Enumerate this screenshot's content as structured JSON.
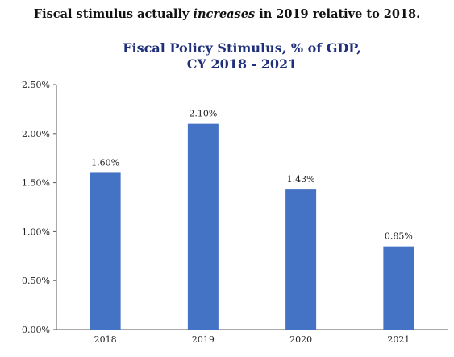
{
  "headline": {
    "before": "Fiscal stimulus actually ",
    "emphasis": "increases",
    "after": " in 2019 relative to 2018."
  },
  "chart_data": {
    "type": "bar",
    "title_line1": "Fiscal Policy Stimulus, % of GDP,",
    "title_line2": "CY 2018 - 2021",
    "categories": [
      "2018",
      "2019",
      "2020",
      "2021"
    ],
    "values": [
      1.6,
      2.1,
      1.43,
      0.85
    ],
    "value_labels": [
      "1.60%",
      "2.10%",
      "1.43%",
      "0.85%"
    ],
    "ylim": [
      0,
      2.5
    ],
    "yticks": [
      0,
      0.5,
      1.0,
      1.5,
      2.0,
      2.5
    ],
    "ytick_labels": [
      "0.00%",
      "0.50%",
      "1.00%",
      "1.50%",
      "2.00%",
      "2.50%"
    ],
    "bar_color": "#4472c4",
    "grid": false,
    "legend": false
  }
}
